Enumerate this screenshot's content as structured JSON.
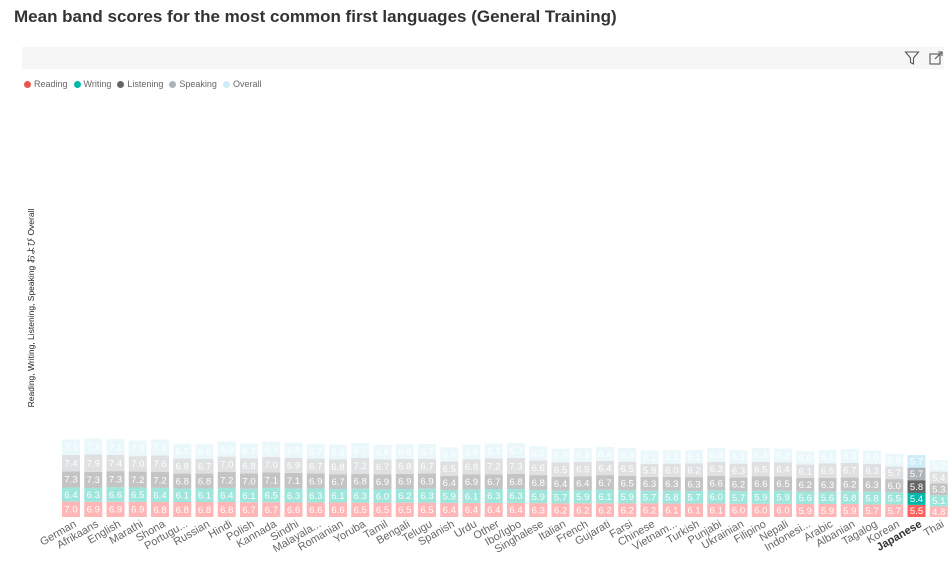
{
  "chart_data": {
    "type": "bar",
    "stacked": true,
    "title": "Mean band scores for the most common first languages (General Training)",
    "ylabel": "Reading, Writing, Listening, Speaking および Overall",
    "xlabel": "",
    "legend_position": "top-left",
    "grid": false,
    "highlighted_category": "Japanese",
    "categories": [
      "German",
      "Afrikaans",
      "English",
      "Marathi",
      "Shona",
      "Portugu...",
      "Russian",
      "Hindi",
      "Polish",
      "Kannada",
      "Sindhi",
      "Malayala...",
      "Romanian",
      "Yoruba",
      "Tamil",
      "Bengali",
      "Telugu",
      "Spanish",
      "Urdu",
      "Other",
      "Ibo/Igbo",
      "Singhalese",
      "Italian",
      "French",
      "Gujarati",
      "Farsi",
      "Chinese",
      "Vietnam...",
      "Turkish",
      "Punjabi",
      "Ukrainian",
      "Filipino",
      "Nepali",
      "Indonesi...",
      "Arabic",
      "Albanian",
      "Tagalog",
      "Korean",
      "Japanese",
      "Thai"
    ],
    "series": [
      {
        "name": "Reading",
        "color": "#ffb6b6",
        "highlight_color": "#fd625e",
        "values": [
          7.0,
          6.9,
          6.9,
          6.9,
          6.8,
          6.8,
          6.8,
          6.8,
          6.7,
          6.7,
          6.6,
          6.6,
          6.6,
          6.5,
          6.5,
          6.5,
          6.5,
          6.4,
          6.4,
          6.4,
          6.4,
          6.3,
          6.2,
          6.2,
          6.2,
          6.2,
          6.2,
          6.1,
          6.1,
          6.1,
          6.0,
          6.0,
          6.0,
          5.9,
          5.9,
          5.9,
          5.7,
          5.7,
          5.5,
          4.8
        ]
      },
      {
        "name": "Writing",
        "color": "#9ee5dc",
        "highlight_color": "#01b8aa",
        "values": [
          6.4,
          6.3,
          6.6,
          6.5,
          6.4,
          6.1,
          6.1,
          6.4,
          6.1,
          6.5,
          6.3,
          6.3,
          6.1,
          6.3,
          6.0,
          6.2,
          6.3,
          5.9,
          6.1,
          6.3,
          6.3,
          5.9,
          5.7,
          5.9,
          6.1,
          5.9,
          5.7,
          5.8,
          5.7,
          6.0,
          5.7,
          5.9,
          5.9,
          5.6,
          5.6,
          5.8,
          5.8,
          5.5,
          5.4,
          5.1
        ]
      },
      {
        "name": "Listening",
        "color": "#c4c4c4",
        "highlight_color": "#666666",
        "values": [
          7.3,
          7.3,
          7.3,
          7.2,
          7.2,
          6.8,
          6.8,
          7.2,
          7.0,
          7.1,
          7.1,
          6.9,
          6.7,
          6.8,
          6.9,
          6.9,
          6.9,
          6.4,
          6.9,
          6.7,
          6.8,
          6.8,
          6.4,
          6.4,
          6.7,
          6.5,
          6.3,
          6.3,
          6.3,
          6.6,
          6.2,
          6.6,
          6.5,
          6.2,
          6.3,
          6.2,
          6.3,
          6.0,
          5.8,
          5.3
        ]
      },
      {
        "name": "Speaking",
        "color": "#dfe0e1",
        "highlight_color": "#aeb3b7",
        "values": [
          7.4,
          7.9,
          7.4,
          7.0,
          7.6,
          6.8,
          6.7,
          7.0,
          6.8,
          7.0,
          6.9,
          6.7,
          6.8,
          7.2,
          6.7,
          6.8,
          6.7,
          6.5,
          6.8,
          7.2,
          7.3,
          6.6,
          6.5,
          6.5,
          6.4,
          6.5,
          5.9,
          6.0,
          6.2,
          6.3,
          6.3,
          6.5,
          6.4,
          6.1,
          6.5,
          6.7,
          6.3,
          5.7,
          5.7,
          5.4
        ]
      },
      {
        "name": "Overall",
        "color": "#eaf8fc",
        "highlight_color": "#cdeef8",
        "values": [
          7.1,
          7.2,
          7.1,
          7.0,
          7.1,
          6.7,
          6.6,
          6.9,
          6.7,
          6.9,
          6.8,
          6.7,
          6.6,
          6.7,
          6.6,
          6.6,
          6.7,
          6.4,
          6.6,
          6.7,
          6.7,
          6.5,
          6.3,
          6.3,
          6.4,
          6.3,
          6.1,
          6.1,
          6.1,
          6.3,
          6.1,
          6.3,
          6.2,
          6.0,
          6.1,
          6.2,
          6.0,
          5.8,
          5.7,
          5.2
        ]
      }
    ]
  },
  "legend": {
    "items": [
      {
        "label": "Reading",
        "color": "#e5584f"
      },
      {
        "label": "Writing",
        "color": "#01b8aa"
      },
      {
        "label": "Listening",
        "color": "#666666"
      },
      {
        "label": "Speaking",
        "color": "#aeb3b7"
      },
      {
        "label": "Overall",
        "color": "#cdeef8"
      }
    ]
  },
  "toolbar": {
    "filter_icon": "filter-funnel-icon",
    "focus_icon": "focus-mode-icon"
  }
}
